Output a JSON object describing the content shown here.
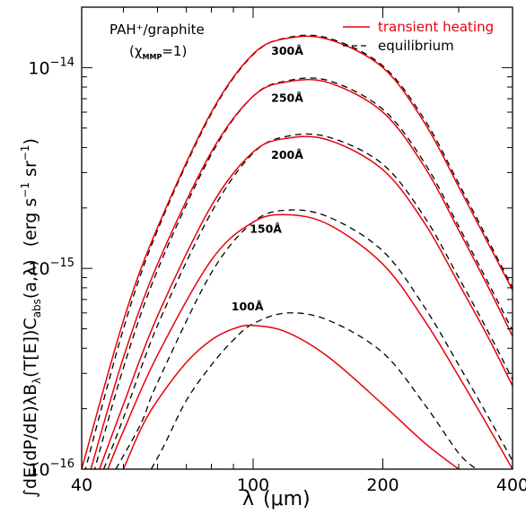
{
  "chart_data": {
    "type": "line",
    "annotation_title": "PAH⁺/graphite",
    "annotation_chi": "(χ",
    "annotation_chi_sub": "MMP",
    "annotation_chi_tail": "=1)",
    "xlabel_symbol": "λ",
    "xlabel_unit": "(μm)",
    "ylabel_main": "∫dE(dP/dE)λB",
    "ylabel_sub_lambda": "λ",
    "ylabel_mid": "(T[E])C",
    "ylabel_sub_abs": "abs",
    "ylabel_tail": "(a,λ)",
    "ylabel_units": "(erg s",
    "ylabel_units_exp1": "−1",
    "ylabel_units_mid": " sr",
    "ylabel_units_exp2": "−1",
    "ylabel_units_close": ")",
    "xscale": "log",
    "yscale": "log",
    "xlim": [
      40,
      400
    ],
    "ylim": [
      1e-16,
      2e-14
    ],
    "x_ticks": [
      {
        "value": 40,
        "label": "40"
      },
      {
        "value": 100,
        "label": "100"
      },
      {
        "value": 200,
        "label": "200"
      },
      {
        "value": 400,
        "label": "400"
      }
    ],
    "y_ticks": [
      {
        "value": 1e-16,
        "base": "10",
        "exp": "−16"
      },
      {
        "value": 1e-15,
        "base": "10",
        "exp": "−15"
      },
      {
        "value": 1e-14,
        "base": "10",
        "exp": "−14"
      }
    ],
    "legend": [
      {
        "label": "transient heating",
        "color": "#e8000b",
        "dash": "solid"
      },
      {
        "label": "equilibrium",
        "color": "#000000",
        "dash": "dashed"
      }
    ],
    "legend_position": "top-right",
    "series": [
      {
        "label": "300Å",
        "label_x": 120,
        "label_y": 1.22e-14,
        "transient": {
          "x": [
            40,
            50,
            60,
            80,
            100,
            120,
            150,
            200,
            250,
            300,
            350,
            400
          ],
          "y": [
            1e-16,
            5.5e-16,
            1.6e-15,
            6e-15,
            1.17e-14,
            1.4e-14,
            1.38e-14,
            1e-14,
            5.3e-15,
            2.55e-15,
            1.35e-15,
            7.8e-16
          ]
        },
        "equilibrium": {
          "x": [
            40,
            50,
            60,
            80,
            100,
            120,
            150,
            200,
            250,
            300,
            350,
            400
          ],
          "y": [
            8.5e-17,
            5e-16,
            1.55e-15,
            5.9e-15,
            1.16e-14,
            1.41e-14,
            1.4e-14,
            1.02e-14,
            5.5e-15,
            2.65e-15,
            1.4e-15,
            8e-16
          ]
        }
      },
      {
        "label": "250Å",
        "label_x": 120,
        "label_y": 7.1e-15,
        "transient": {
          "x": [
            42,
            50,
            60,
            80,
            100,
            120,
            150,
            200,
            250,
            300,
            350,
            400
          ],
          "y": [
            1e-16,
            3.6e-16,
            1.05e-15,
            3.8e-15,
            7.2e-15,
            8.5e-15,
            8.4e-15,
            6e-15,
            3.2e-15,
            1.55e-15,
            8.2e-16,
            4.6e-16
          ]
        },
        "equilibrium": {
          "x": [
            42,
            50,
            60,
            80,
            100,
            120,
            150,
            200,
            250,
            300,
            350,
            400
          ],
          "y": [
            8.5e-17,
            3.2e-16,
            9.8e-16,
            3.7e-15,
            7.2e-15,
            8.6e-15,
            8.6e-15,
            6.2e-15,
            3.35e-15,
            1.62e-15,
            8.6e-16,
            4.9e-16
          ]
        }
      },
      {
        "label": "200Å",
        "label_x": 120,
        "label_y": 3.7e-15,
        "transient": {
          "x": [
            44,
            50,
            60,
            80,
            100,
            120,
            150,
            200,
            250,
            300,
            350,
            400
          ],
          "y": [
            1e-16,
            2.1e-16,
            5.8e-16,
            2.05e-15,
            3.8e-15,
            4.45e-15,
            4.35e-15,
            3.1e-15,
            1.68e-15,
            8.4e-16,
            4.6e-16,
            2.6e-16
          ]
        },
        "equilibrium": {
          "x": [
            45,
            50,
            60,
            80,
            100,
            120,
            150,
            200,
            250,
            300,
            350,
            400
          ],
          "y": [
            1e-16,
            1.8e-16,
            5.2e-16,
            1.9e-15,
            3.75e-15,
            4.55e-15,
            4.5e-15,
            3.3e-15,
            1.8e-15,
            9e-16,
            4.9e-16,
            2.8e-16
          ]
        }
      },
      {
        "label": "150Å",
        "label_x": 107,
        "label_y": 1.58e-15,
        "transient": {
          "x": [
            46,
            50,
            60,
            80,
            100,
            120,
            150,
            200,
            250,
            300,
            350,
            400
          ],
          "y": [
            1e-16,
            1.55e-16,
            3.7e-16,
            1.1e-15,
            1.7e-15,
            1.85e-15,
            1.65e-15,
            1.05e-15,
            5.5e-16,
            2.9e-16,
            1.65e-16,
            1e-16
          ]
        },
        "equilibrium": {
          "x": [
            48,
            55,
            60,
            80,
            100,
            120,
            150,
            200,
            250,
            300,
            350,
            400
          ],
          "y": [
            1e-16,
            1.7e-16,
            2.7e-16,
            9.5e-16,
            1.7e-15,
            1.95e-15,
            1.8e-15,
            1.22e-15,
            6.4e-16,
            3.3e-16,
            1.85e-16,
            1.1e-16
          ]
        }
      },
      {
        "label": "100Å",
        "label_x": 97,
        "label_y": 6.5e-16,
        "transient": {
          "x": [
            50,
            55,
            60,
            70,
            80,
            90,
            100,
            120,
            150,
            200,
            250,
            300
          ],
          "y": [
            1e-16,
            1.6e-16,
            2.2e-16,
            3.4e-16,
            4.4e-16,
            5e-16,
            5.2e-16,
            4.8e-16,
            3.6e-16,
            2.1e-16,
            1.35e-16,
            1e-16
          ]
        },
        "equilibrium": {
          "x": [
            58,
            62,
            70,
            80,
            90,
            100,
            120,
            150,
            200,
            250,
            300,
            330
          ],
          "y": [
            1e-16,
            1.3e-16,
            2.2e-16,
            3.3e-16,
            4.4e-16,
            5.3e-16,
            6e-16,
            5.5e-16,
            3.8e-16,
            2.1e-16,
            1.2e-16,
            1e-16
          ]
        }
      }
    ]
  }
}
